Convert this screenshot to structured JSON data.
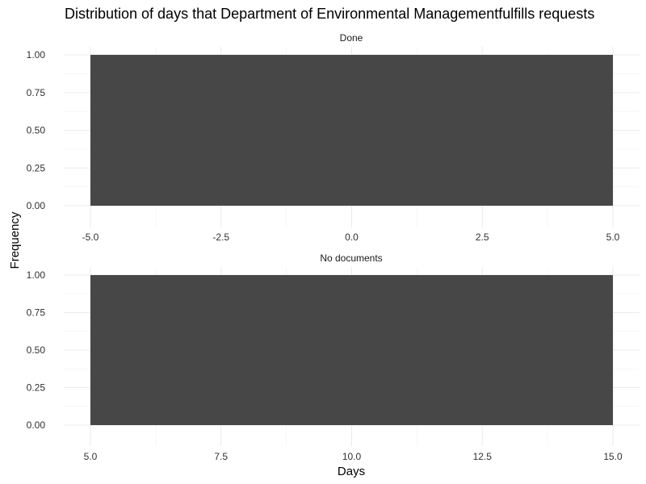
{
  "chart_data": {
    "type": "bar",
    "title": "Distribution of days that Department of Environmental Managementfulfills requests",
    "xlabel": "Days",
    "ylabel": "Frequency",
    "bar_color": "#474747",
    "grid": true,
    "legend": "none",
    "panels": [
      {
        "name": "Done",
        "xlim": [
          -5.0,
          5.0
        ],
        "ylim": [
          0,
          1
        ],
        "x_ticks": [
          "-5.0",
          "-2.5",
          "0.0",
          "2.5",
          "5.0"
        ],
        "y_ticks": [
          "0.00",
          "0.25",
          "0.50",
          "0.75",
          "1.00"
        ],
        "bars": [
          {
            "x_start": -5.0,
            "x_end": 5.0,
            "value": 1
          }
        ]
      },
      {
        "name": "No documents",
        "xlim": [
          5.0,
          15.0
        ],
        "ylim": [
          0,
          1
        ],
        "x_ticks": [
          "5.0",
          "7.5",
          "10.0",
          "12.5",
          "15.0"
        ],
        "y_ticks": [
          "0.00",
          "0.25",
          "0.50",
          "0.75",
          "1.00"
        ],
        "bars": [
          {
            "x_start": 5.0,
            "x_end": 15.0,
            "value": 1
          }
        ]
      }
    ]
  }
}
